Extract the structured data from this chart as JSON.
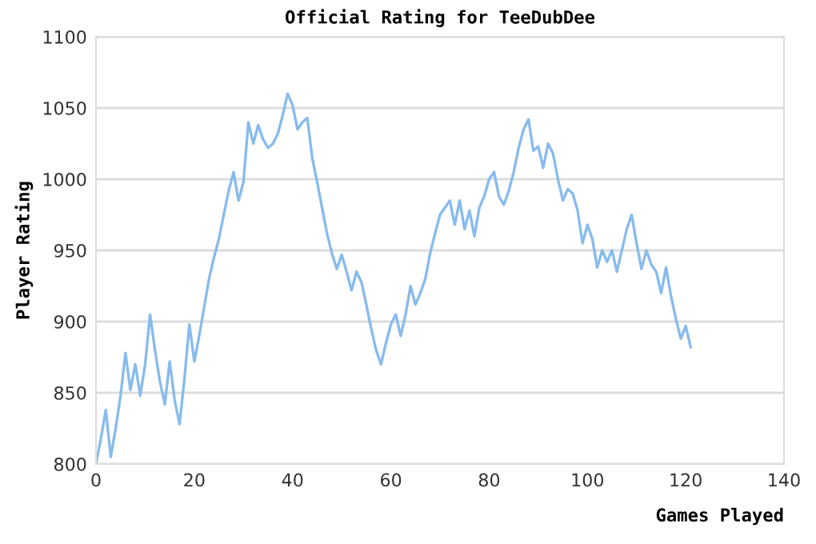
{
  "chart_data": {
    "type": "line",
    "title": "Official Rating for TeeDubDee",
    "xlabel": "Games Played",
    "ylabel": "Player Rating",
    "xlim": [
      0,
      140
    ],
    "xticks": [
      0,
      20,
      40,
      60,
      80,
      100,
      120,
      140
    ],
    "ylim": [
      800,
      1100
    ],
    "yticks": [
      800,
      850,
      900,
      950,
      1000,
      1050,
      1100
    ],
    "grid": "y",
    "legend": false,
    "marker": "none",
    "line_style": "solid",
    "series": [
      {
        "color": "#88bbee",
        "x": [
          0,
          1,
          2,
          3,
          4,
          5,
          6,
          7,
          8,
          9,
          10,
          11,
          12,
          13,
          14,
          15,
          16,
          17,
          18,
          19,
          20,
          21,
          22,
          23,
          24,
          25,
          26,
          27,
          28,
          29,
          30,
          31,
          32,
          33,
          34,
          35,
          36,
          37,
          38,
          39,
          40,
          41,
          42,
          43,
          44,
          45,
          46,
          47,
          48,
          49,
          50,
          51,
          52,
          53,
          54,
          55,
          56,
          57,
          58,
          59,
          60,
          61,
          62,
          63,
          64,
          65,
          66,
          67,
          68,
          69,
          70,
          71,
          72,
          73,
          74,
          75,
          76,
          77,
          78,
          79,
          80,
          81,
          82,
          83,
          84,
          85,
          86,
          87,
          88,
          89,
          90,
          91,
          92,
          93,
          94,
          95,
          96,
          97,
          98,
          99,
          100,
          101,
          102,
          103,
          104,
          105,
          106,
          107,
          108,
          109,
          110,
          111,
          112,
          113,
          114,
          115,
          116,
          117,
          118,
          119,
          120,
          121
        ],
        "values": [
          800,
          818,
          838,
          805,
          825,
          848,
          878,
          852,
          870,
          848,
          870,
          905,
          880,
          858,
          842,
          872,
          845,
          828,
          860,
          898,
          872,
          890,
          910,
          930,
          945,
          958,
          975,
          992,
          1005,
          985,
          998,
          1040,
          1025,
          1038,
          1028,
          1022,
          1025,
          1032,
          1045,
          1060,
          1052,
          1035,
          1040,
          1043,
          1015,
          998,
          980,
          962,
          948,
          937,
          947,
          935,
          922,
          935,
          928,
          912,
          895,
          880,
          870,
          885,
          898,
          905,
          890,
          905,
          925,
          912,
          920,
          930,
          948,
          962,
          975,
          980,
          985,
          968,
          985,
          965,
          978,
          960,
          980,
          988,
          1000,
          1005,
          988,
          982,
          992,
          1005,
          1022,
          1035,
          1042,
          1020,
          1023,
          1008,
          1025,
          1018,
          1000,
          985,
          993,
          990,
          978,
          955,
          968,
          958,
          938,
          950,
          942,
          950,
          935,
          950,
          965,
          975,
          955,
          937,
          950,
          940,
          935,
          920,
          938,
          918,
          902,
          888,
          897,
          882
        ]
      }
    ]
  }
}
